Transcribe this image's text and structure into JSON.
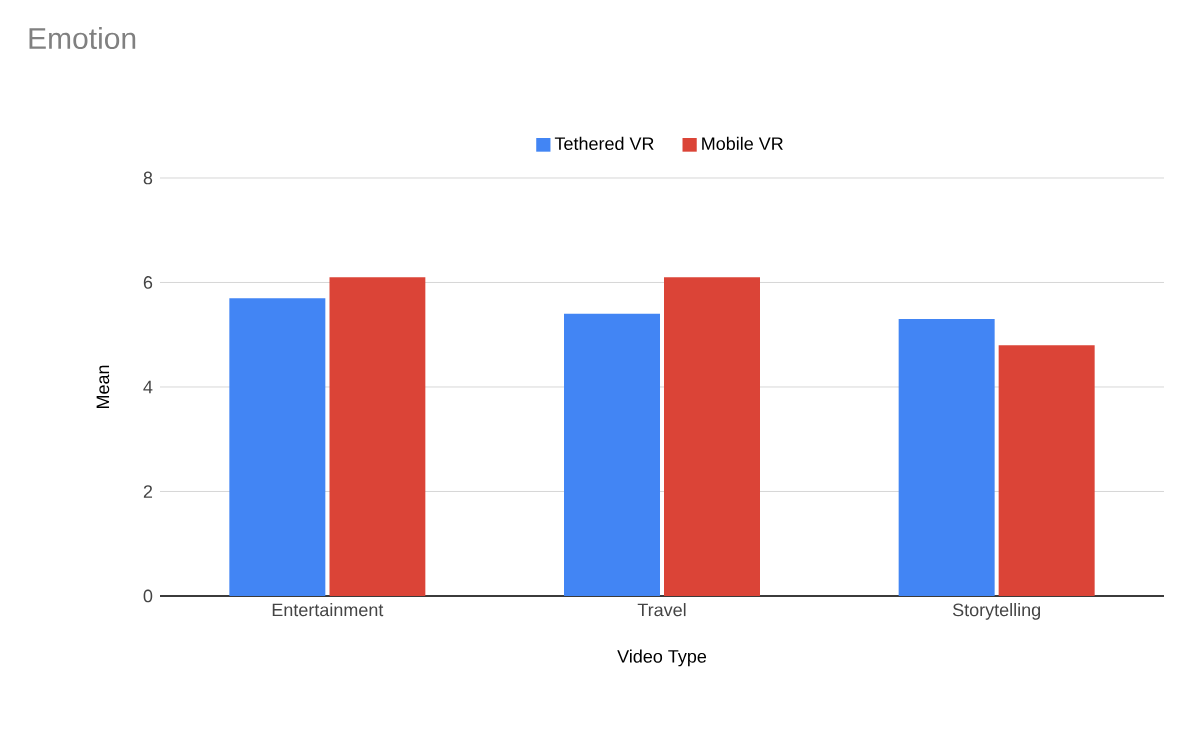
{
  "chart_data": {
    "type": "bar",
    "title": "Emotion",
    "xlabel": "Video Type",
    "ylabel": "Mean",
    "categories": [
      "Entertainment",
      "Travel",
      "Storytelling"
    ],
    "series": [
      {
        "name": "Tethered VR",
        "color": "#4285f4",
        "values": [
          5.7,
          5.4,
          5.3
        ]
      },
      {
        "name": "Mobile VR",
        "color": "#db4437",
        "values": [
          6.1,
          6.1,
          4.8
        ]
      }
    ],
    "ylim": [
      0,
      8
    ],
    "yticks": [
      0,
      2,
      4,
      6,
      8
    ],
    "grid": "y",
    "legend": "top"
  }
}
